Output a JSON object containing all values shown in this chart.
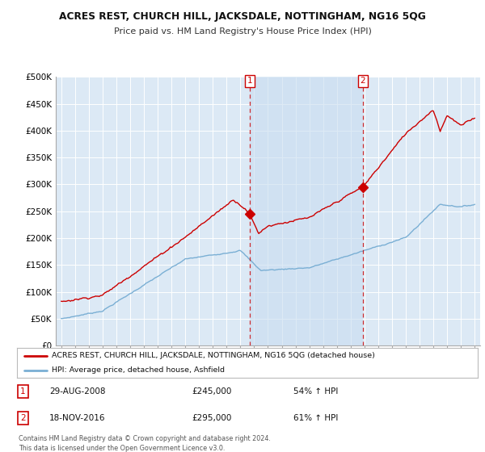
{
  "title": "ACRES REST, CHURCH HILL, JACKSDALE, NOTTINGHAM, NG16 5QG",
  "subtitle": "Price paid vs. HM Land Registry's House Price Index (HPI)",
  "legend_label_red": "ACRES REST, CHURCH HILL, JACKSDALE, NOTTINGHAM, NG16 5QG (detached house)",
  "legend_label_blue": "HPI: Average price, detached house, Ashfield",
  "annotation1": {
    "num": "1",
    "date": "29-AUG-2008",
    "price": "£245,000",
    "hpi": "54% ↑ HPI"
  },
  "annotation2": {
    "num": "2",
    "date": "18-NOV-2016",
    "price": "£295,000",
    "hpi": "61% ↑ HPI"
  },
  "footer": "Contains HM Land Registry data © Crown copyright and database right 2024.\nThis data is licensed under the Open Government Licence v3.0.",
  "ylim": [
    0,
    500000
  ],
  "yticks": [
    0,
    50000,
    100000,
    150000,
    200000,
    250000,
    300000,
    350000,
    400000,
    450000,
    500000
  ],
  "xlim_start": 1994.6,
  "xlim_end": 2025.4,
  "red_color": "#cc0000",
  "blue_color": "#7aafd4",
  "vline_color": "#cc0000",
  "vline_x1": 2008.66,
  "vline_x2": 2016.88,
  "sale1_x": 2008.66,
  "sale1_y": 245000,
  "sale2_x": 2016.88,
  "sale2_y": 295000,
  "background_color": "#ffffff",
  "plot_bg_color": "#dce9f5",
  "shade_color": "#c8ddf0",
  "grid_color": "#ffffff",
  "spine_color": "#aaaaaa"
}
